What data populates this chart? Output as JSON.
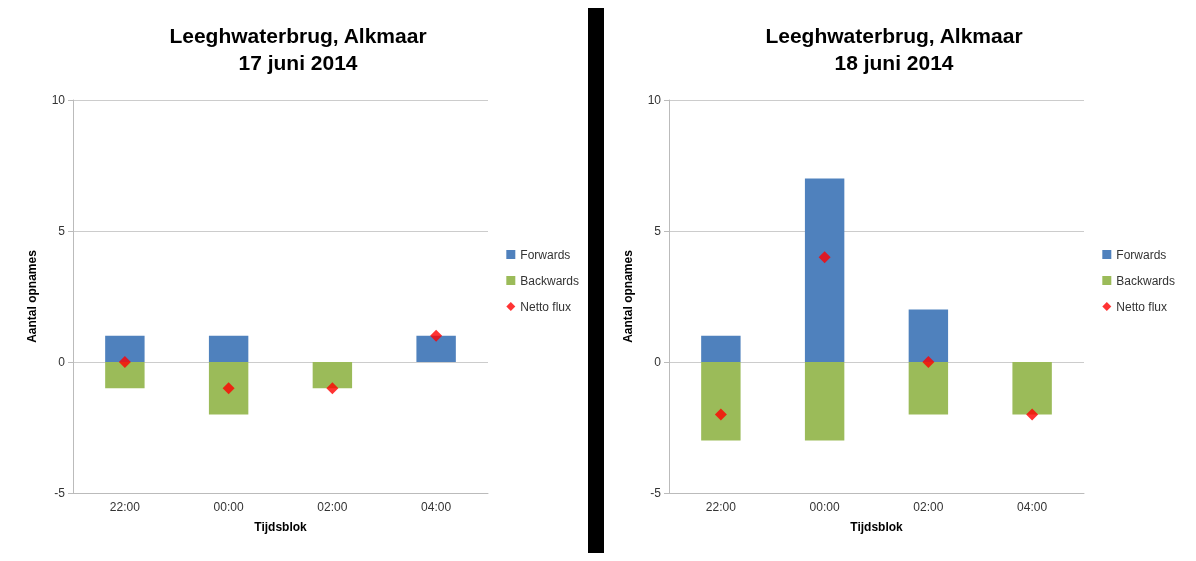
{
  "chart_data": [
    {
      "type": "bar",
      "title": "Leeghwaterbrug, Alkmaar",
      "subtitle": "17 juni 2014",
      "xlabel": "Tijdsblok",
      "ylabel": "Aantal opnames",
      "categories": [
        "22:00",
        "00:00",
        "02:00",
        "04:00"
      ],
      "stacked": true,
      "ylim": [
        -5,
        10
      ],
      "yticks": [
        -5,
        0,
        5,
        10
      ],
      "grid": "y",
      "legend": "right",
      "series": [
        {
          "name": "Forwards",
          "color": "#4f81bd",
          "values": [
            1,
            1,
            0,
            1
          ]
        },
        {
          "name": "Backwards",
          "color": "#9bbb59",
          "values": [
            -1,
            -2,
            -1,
            0
          ]
        },
        {
          "name": "Netto flux",
          "type": "scatter",
          "marker": "diamond",
          "color": "#ff0000",
          "values": [
            0,
            -1,
            -1,
            1
          ]
        }
      ]
    },
    {
      "type": "bar",
      "title": "Leeghwaterbrug, Alkmaar",
      "subtitle": "18 juni 2014",
      "xlabel": "Tijdsblok",
      "ylabel": "Aantal opnames",
      "categories": [
        "22:00",
        "00:00",
        "02:00",
        "04:00"
      ],
      "stacked": true,
      "ylim": [
        -5,
        10
      ],
      "yticks": [
        -5,
        0,
        5,
        10
      ],
      "grid": "y",
      "legend": "right",
      "series": [
        {
          "name": "Forwards",
          "color": "#4f81bd",
          "values": [
            1,
            7,
            2,
            0
          ]
        },
        {
          "name": "Backwards",
          "color": "#9bbb59",
          "values": [
            -3,
            -3,
            -2,
            -2
          ]
        },
        {
          "name": "Netto flux",
          "type": "scatter",
          "marker": "diamond",
          "color": "#ff0000",
          "values": [
            -2,
            4,
            0,
            -2
          ]
        }
      ]
    }
  ]
}
